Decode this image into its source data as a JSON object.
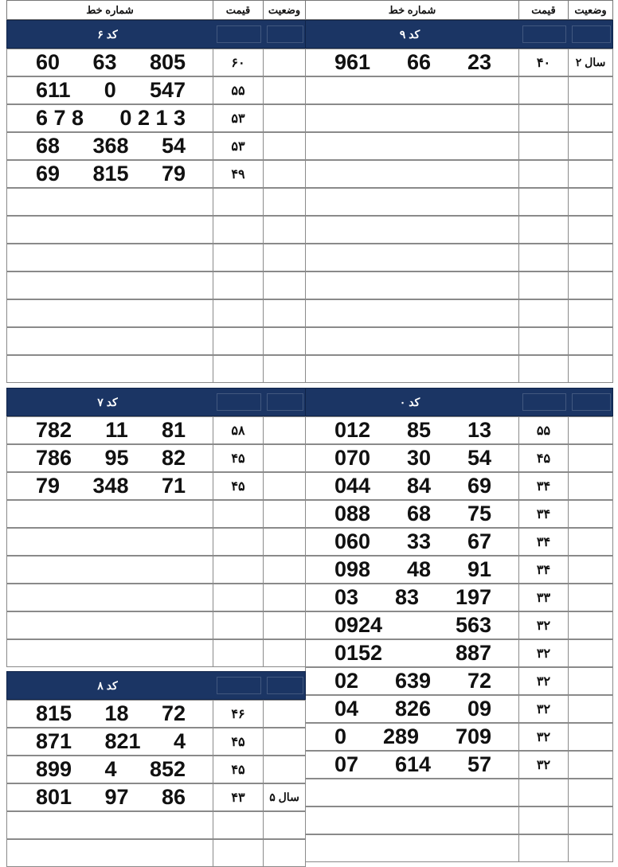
{
  "headers": {
    "line_number": "شماره خط",
    "price": "قیمت",
    "status": "وضعیت"
  },
  "colors": {
    "band": "#1b3564",
    "grid": "#8a8a8a"
  },
  "sections": {
    "code6": {
      "title": "کد ۶",
      "rows": [
        {
          "number": [
            "60",
            "63",
            "805"
          ],
          "price": "۶۰",
          "status": ""
        },
        {
          "number": [
            "611",
            "0",
            "547"
          ],
          "price": "۵۵",
          "status": ""
        },
        {
          "number": [
            "6 7 8",
            "0 2 1 3"
          ],
          "price": "۵۳",
          "status": ""
        },
        {
          "number": [
            "68",
            "368",
            "54"
          ],
          "price": "۵۳",
          "status": ""
        },
        {
          "number": [
            "69",
            "815",
            "79"
          ],
          "price": "۴۹",
          "status": ""
        }
      ]
    },
    "code9": {
      "title": "کد ۹",
      "rows": [
        {
          "number": [
            "961",
            "66",
            "23"
          ],
          "price": "۴۰",
          "status": "۲ سال"
        }
      ]
    },
    "code7": {
      "title": "کد ۷",
      "rows": [
        {
          "number": [
            "782",
            "11",
            "81"
          ],
          "price": "۵۸",
          "status": ""
        },
        {
          "number": [
            "786",
            "95",
            "82"
          ],
          "price": "۴۵",
          "status": ""
        },
        {
          "number": [
            "79",
            "348",
            "71"
          ],
          "price": "۴۵",
          "status": ""
        }
      ]
    },
    "code0": {
      "title": "کد ۰",
      "rows": [
        {
          "number": [
            "012",
            "85",
            "13"
          ],
          "price": "۵۵",
          "status": ""
        },
        {
          "number": [
            "070",
            "30",
            "54"
          ],
          "price": "۴۵",
          "status": ""
        },
        {
          "number": [
            "044",
            "84",
            "69"
          ],
          "price": "۳۴",
          "status": ""
        },
        {
          "number": [
            "088",
            "68",
            "75"
          ],
          "price": "۳۴",
          "status": ""
        },
        {
          "number": [
            "060",
            "33",
            "67"
          ],
          "price": "۳۴",
          "status": ""
        },
        {
          "number": [
            "098",
            "48",
            "91"
          ],
          "price": "۳۴",
          "status": ""
        },
        {
          "number": [
            "03",
            "83",
            "197"
          ],
          "price": "۳۳",
          "status": ""
        },
        {
          "number": [
            "0924",
            "563"
          ],
          "price": "۳۲",
          "status": ""
        },
        {
          "number": [
            "0152",
            "887"
          ],
          "price": "۳۲",
          "status": ""
        },
        {
          "number": [
            "02",
            "639",
            "72"
          ],
          "price": "۳۲",
          "status": ""
        },
        {
          "number": [
            "04",
            "826",
            "09"
          ],
          "price": "۳۲",
          "status": ""
        },
        {
          "number": [
            "0",
            "289",
            "709"
          ],
          "price": "۳۲",
          "status": ""
        },
        {
          "number": [
            "07",
            "614",
            "57"
          ],
          "price": "۳۲",
          "status": ""
        }
      ]
    },
    "code8": {
      "title": "کد ۸",
      "rows": [
        {
          "number": [
            "815",
            "18",
            "72"
          ],
          "price": "۴۶",
          "status": ""
        },
        {
          "number": [
            "871",
            "821",
            "4"
          ],
          "price": "۴۵",
          "status": ""
        },
        {
          "number": [
            "899",
            "4",
            "852"
          ],
          "price": "۴۵",
          "status": ""
        },
        {
          "number": [
            "801",
            "97",
            "86"
          ],
          "price": "۴۳",
          "status": "۵ سال"
        }
      ]
    }
  }
}
